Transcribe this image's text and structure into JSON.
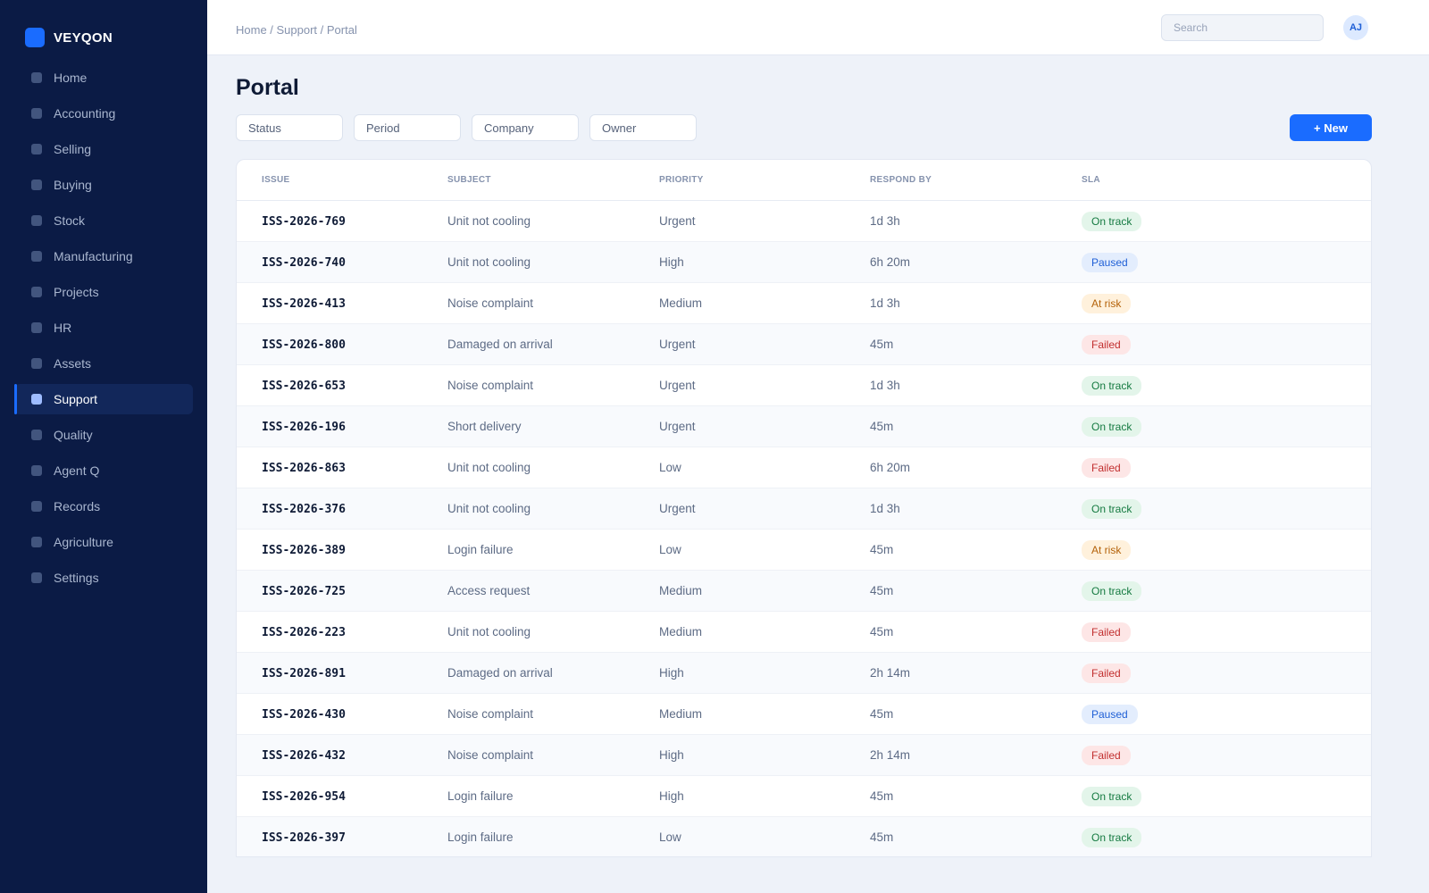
{
  "app": {
    "brand": "VEYQON"
  },
  "sidebar": {
    "items": [
      {
        "label": "Home",
        "active": false
      },
      {
        "label": "Accounting",
        "active": false
      },
      {
        "label": "Selling",
        "active": false
      },
      {
        "label": "Buying",
        "active": false
      },
      {
        "label": "Stock",
        "active": false
      },
      {
        "label": "Manufacturing",
        "active": false
      },
      {
        "label": "Projects",
        "active": false
      },
      {
        "label": "HR",
        "active": false
      },
      {
        "label": "Assets",
        "active": false
      },
      {
        "label": "Support",
        "active": true
      },
      {
        "label": "Quality",
        "active": false
      },
      {
        "label": "Agent Q",
        "active": false
      },
      {
        "label": "Records",
        "active": false
      },
      {
        "label": "Agriculture",
        "active": false
      },
      {
        "label": "Settings",
        "active": false
      }
    ]
  },
  "header": {
    "breadcrumb": "Home / Support / Portal",
    "search_placeholder": "Search",
    "avatar_initials": "AJ"
  },
  "page": {
    "title": "Portal"
  },
  "filters": [
    "Status",
    "Period",
    "Company",
    "Owner"
  ],
  "actions": {
    "new_label": "+ New"
  },
  "table": {
    "columns": [
      "ISSUE",
      "SUBJECT",
      "PRIORITY",
      "RESPOND BY",
      "SLA"
    ],
    "rows": [
      {
        "issue": "ISS-2026-769",
        "subject": "Unit not cooling",
        "priority": "Urgent",
        "respond_by": "1d 3h",
        "sla": "On track"
      },
      {
        "issue": "ISS-2026-740",
        "subject": "Unit not cooling",
        "priority": "High",
        "respond_by": "6h 20m",
        "sla": "Paused"
      },
      {
        "issue": "ISS-2026-413",
        "subject": "Noise complaint",
        "priority": "Medium",
        "respond_by": "1d 3h",
        "sla": "At risk"
      },
      {
        "issue": "ISS-2026-800",
        "subject": "Damaged on arrival",
        "priority": "Urgent",
        "respond_by": "45m",
        "sla": "Failed"
      },
      {
        "issue": "ISS-2026-653",
        "subject": "Noise complaint",
        "priority": "Urgent",
        "respond_by": "1d 3h",
        "sla": "On track"
      },
      {
        "issue": "ISS-2026-196",
        "subject": "Short delivery",
        "priority": "Urgent",
        "respond_by": "45m",
        "sla": "On track"
      },
      {
        "issue": "ISS-2026-863",
        "subject": "Unit not cooling",
        "priority": "Low",
        "respond_by": "6h 20m",
        "sla": "Failed"
      },
      {
        "issue": "ISS-2026-376",
        "subject": "Unit not cooling",
        "priority": "Urgent",
        "respond_by": "1d 3h",
        "sla": "On track"
      },
      {
        "issue": "ISS-2026-389",
        "subject": "Login failure",
        "priority": "Low",
        "respond_by": "45m",
        "sla": "At risk"
      },
      {
        "issue": "ISS-2026-725",
        "subject": "Access request",
        "priority": "Medium",
        "respond_by": "45m",
        "sla": "On track"
      },
      {
        "issue": "ISS-2026-223",
        "subject": "Unit not cooling",
        "priority": "Medium",
        "respond_by": "45m",
        "sla": "Failed"
      },
      {
        "issue": "ISS-2026-891",
        "subject": "Damaged on arrival",
        "priority": "High",
        "respond_by": "2h 14m",
        "sla": "Failed"
      },
      {
        "issue": "ISS-2026-430",
        "subject": "Noise complaint",
        "priority": "Medium",
        "respond_by": "45m",
        "sla": "Paused"
      },
      {
        "issue": "ISS-2026-432",
        "subject": "Noise complaint",
        "priority": "High",
        "respond_by": "2h 14m",
        "sla": "Failed"
      },
      {
        "issue": "ISS-2026-954",
        "subject": "Login failure",
        "priority": "High",
        "respond_by": "45m",
        "sla": "On track"
      },
      {
        "issue": "ISS-2026-397",
        "subject": "Login failure",
        "priority": "Low",
        "respond_by": "45m",
        "sla": "On track"
      }
    ]
  },
  "colors": {
    "sidebar_bg": "#0b1b45",
    "accent": "#1a6cff",
    "page_bg": "#eef2f9",
    "sla_on_track": "#157a41",
    "sla_paused": "#1f5fd6",
    "sla_at_risk": "#b4620a",
    "sla_failed": "#c22f2f"
  },
  "icons": {
    "brand": "brand-logo-icon",
    "nav_item": "nav-bullet-icon"
  }
}
